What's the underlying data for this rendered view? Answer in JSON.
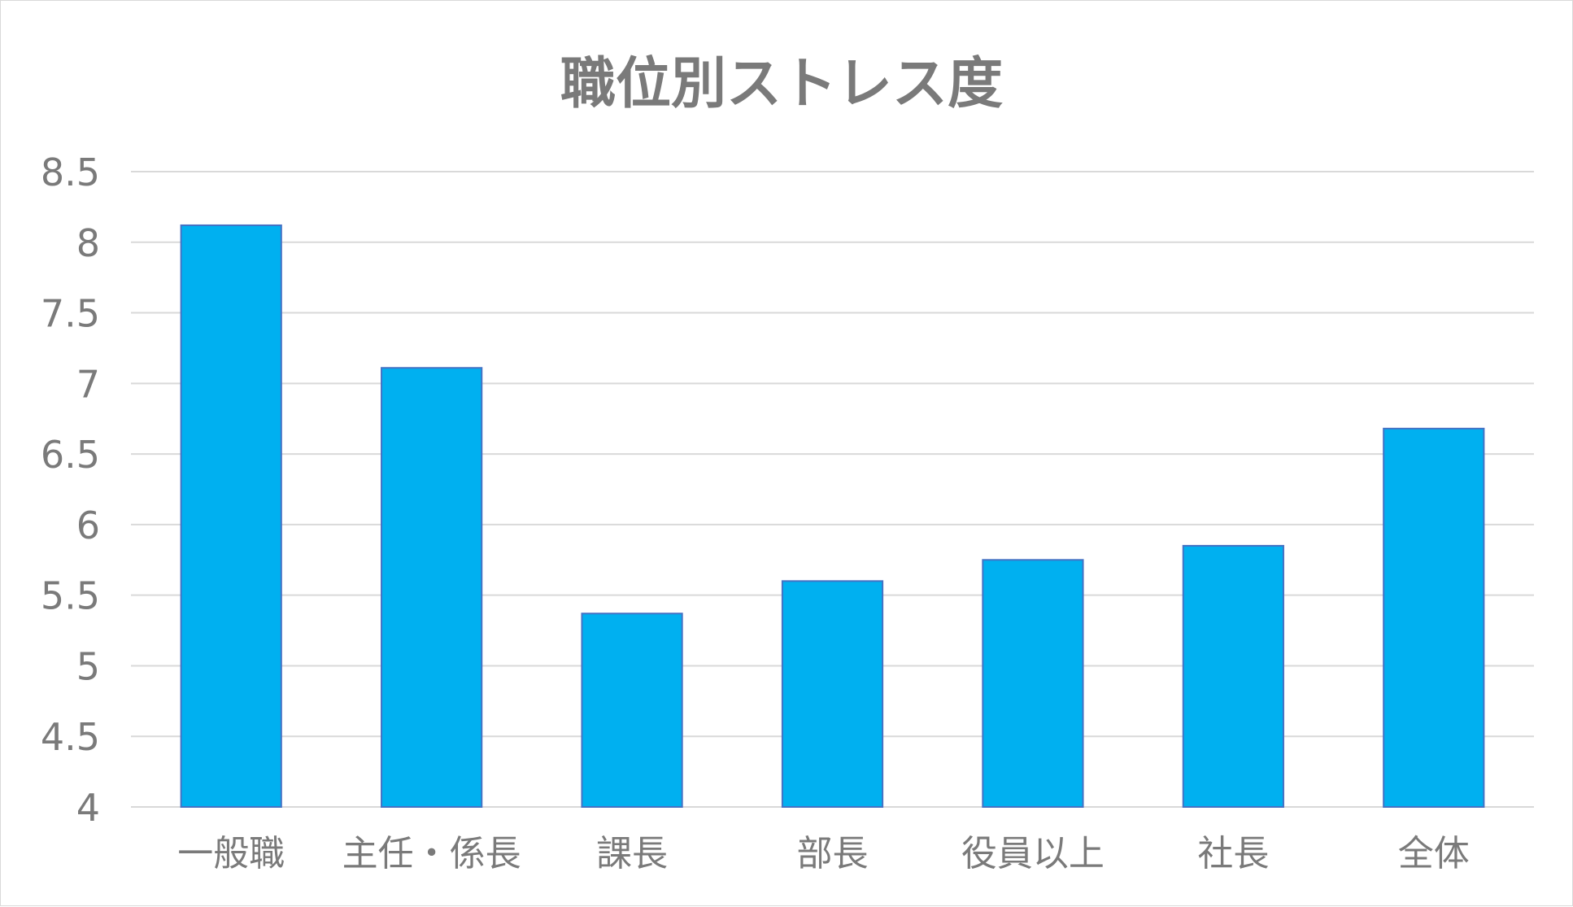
{
  "chart_data": {
    "type": "bar",
    "title": "職位別ストレス度",
    "categories": [
      "一般職",
      "主任・係長",
      "課長",
      "部長",
      "役員以上",
      "社長",
      "全体"
    ],
    "values": [
      8.12,
      7.11,
      5.37,
      5.6,
      5.75,
      5.85,
      6.68
    ],
    "ylim": [
      4,
      8.5
    ],
    "yticks": [
      "4",
      "4.5",
      "5",
      "5.5",
      "6",
      "6.5",
      "7",
      "7.5",
      "8",
      "8.5"
    ],
    "grid": true,
    "bar_color": "#00b0f0",
    "bar_edge_color": "#4472c4"
  }
}
